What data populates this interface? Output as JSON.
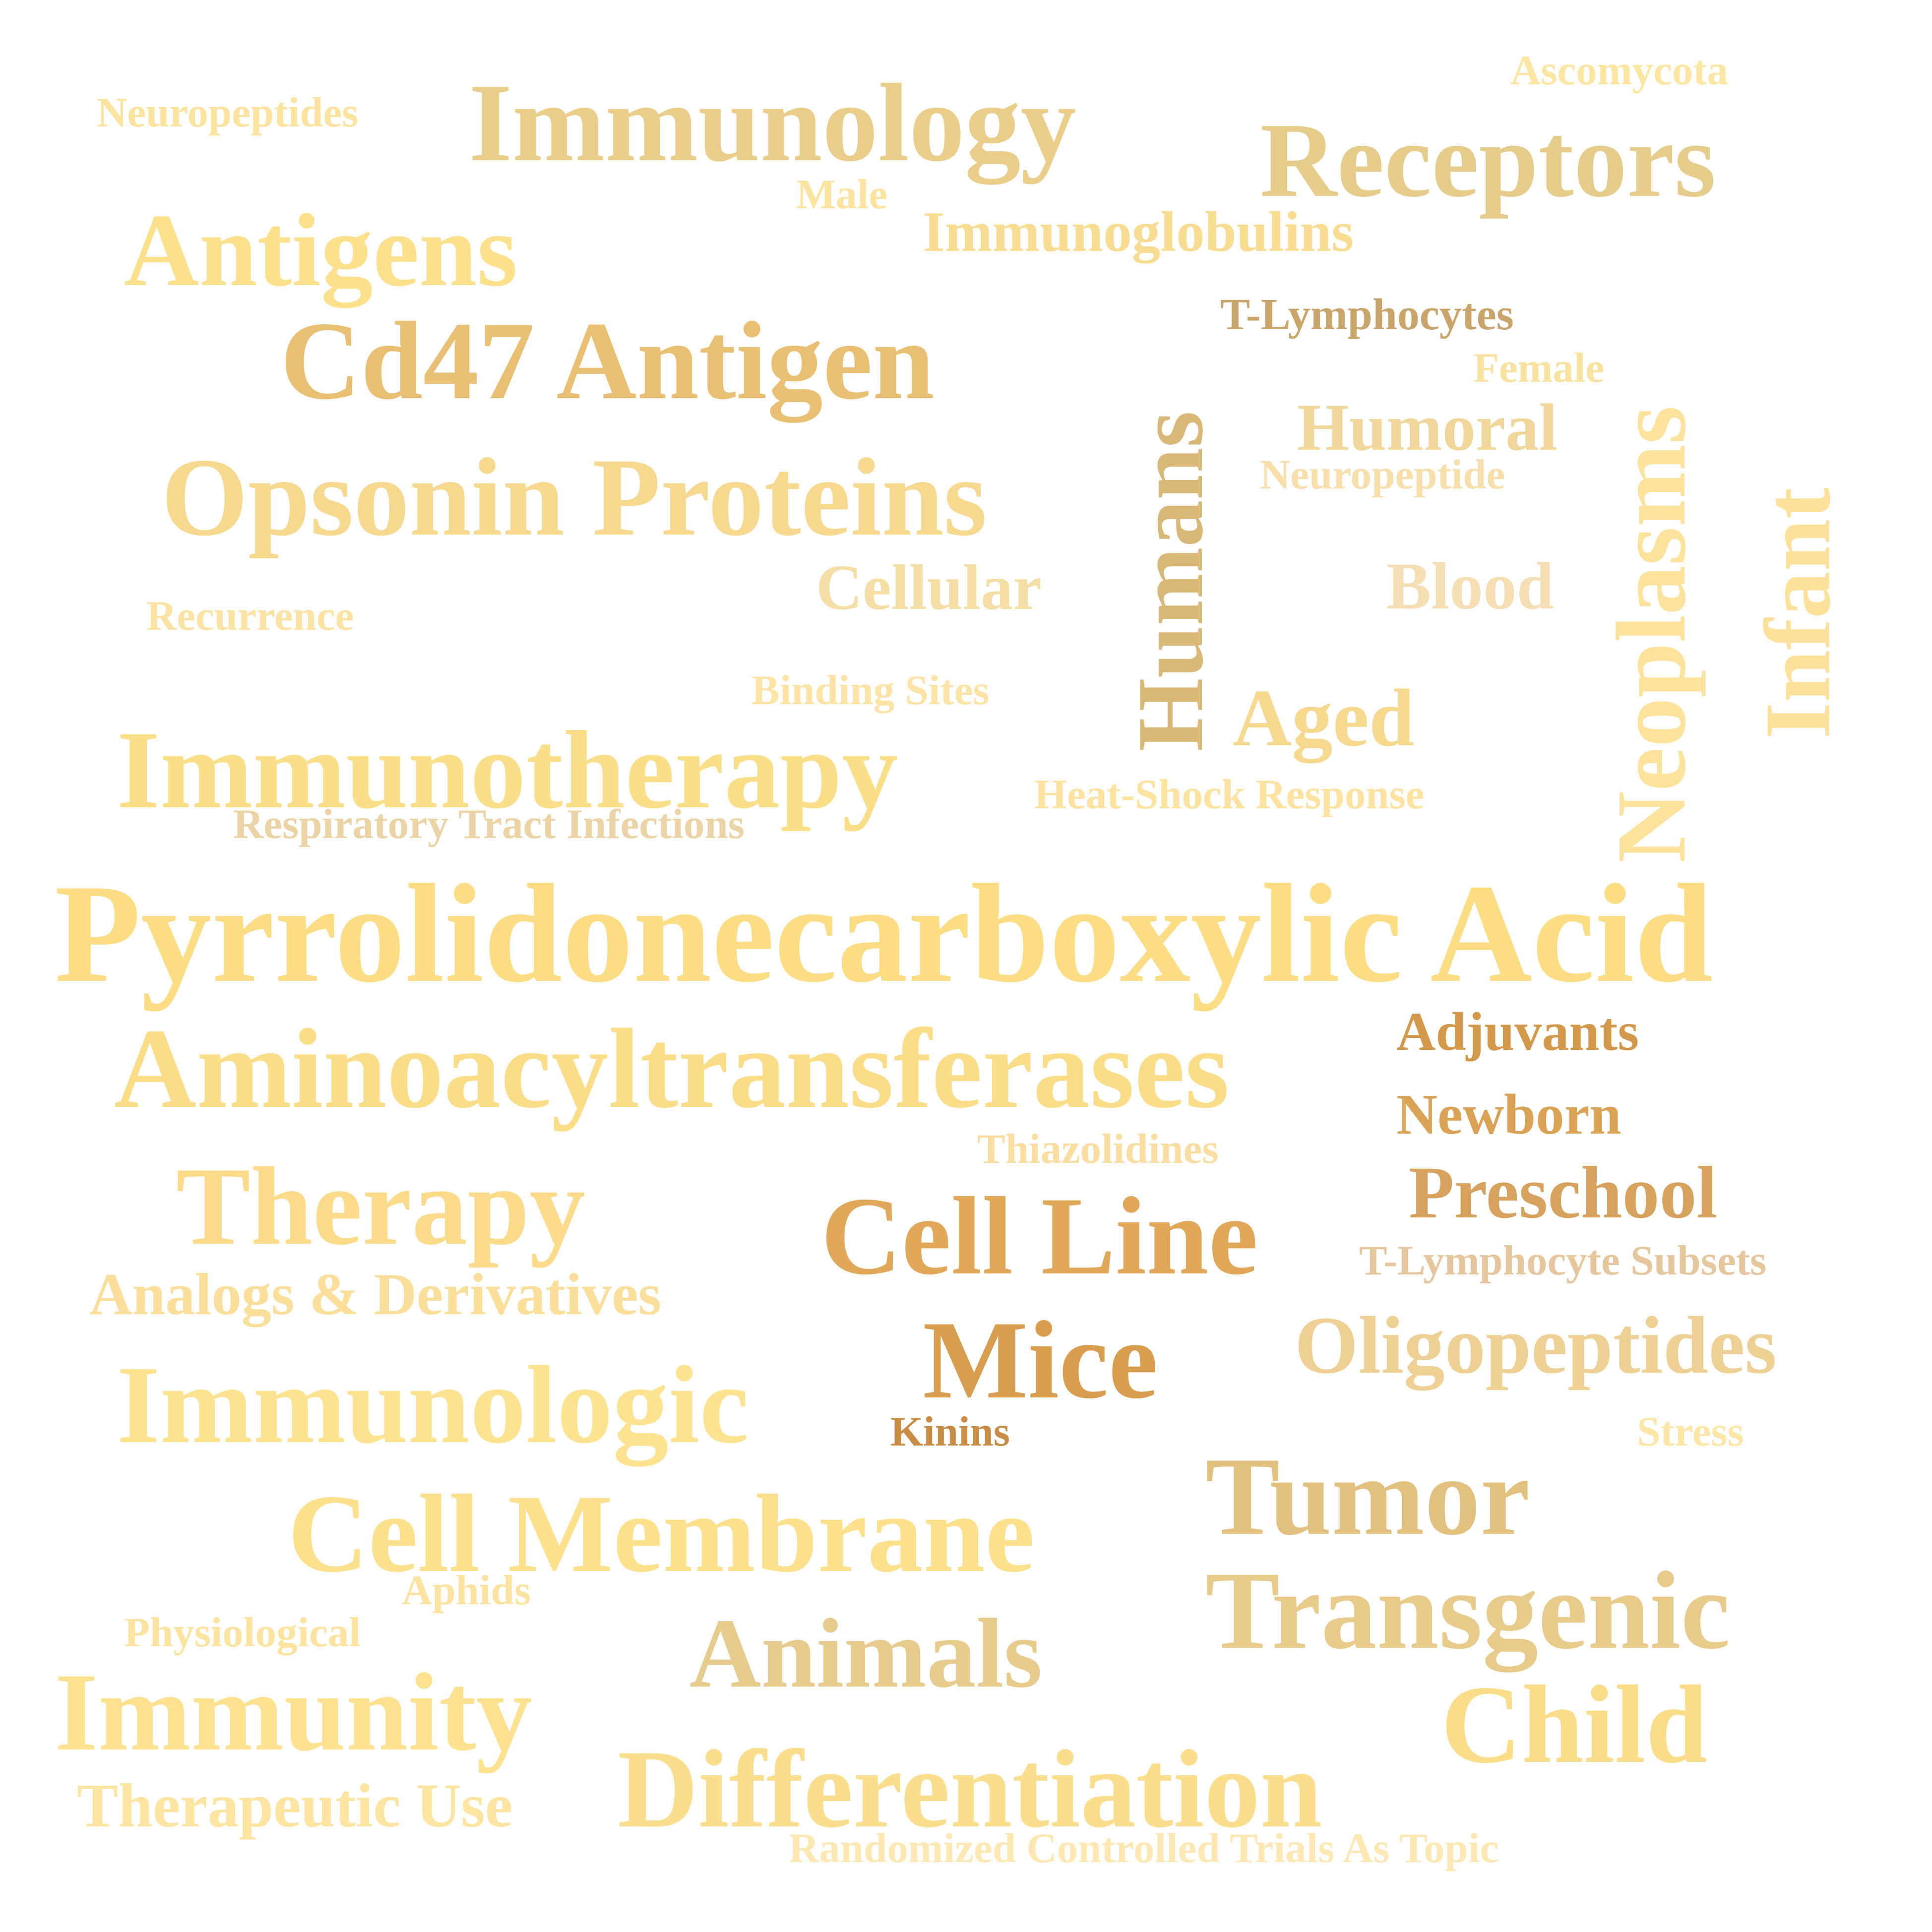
{
  "words": [
    {
      "text": "Pyrrolidonecarboxylic Acid",
      "color": "#fcdd84"
    },
    {
      "text": "Aminoacyltransferases",
      "color": "#fbdc87"
    },
    {
      "text": "Immunotherapy",
      "color": "#fade88"
    },
    {
      "text": "Opsonin Proteins",
      "color": "#f6d98f"
    },
    {
      "text": "Cd47 Antigen",
      "color": "#e8bf73"
    },
    {
      "text": "Immunology",
      "color": "#ebcd8a"
    },
    {
      "text": "Antigens",
      "color": "#fde08c"
    },
    {
      "text": "Receptors",
      "color": "#e6cc8a"
    },
    {
      "text": "Immunoglobulins",
      "color": "#f7dc91"
    },
    {
      "text": "Neuropeptides",
      "color": "#fde3a0"
    },
    {
      "text": "Ascomycota",
      "color": "#fde5a2"
    },
    {
      "text": "Male",
      "color": "#fde3a0"
    },
    {
      "text": "Humans",
      "color": "#d9b776"
    },
    {
      "text": "T-Lymphocytes",
      "color": "#caa56b"
    },
    {
      "text": "Female",
      "color": "#f9e1a0"
    },
    {
      "text": "Neoplasms",
      "color": "#fde29c"
    },
    {
      "text": "Infant",
      "color": "#fde19a"
    },
    {
      "text": "Humoral",
      "color": "#f0d69b"
    },
    {
      "text": "Neuropeptide",
      "color": "#f7deaa"
    },
    {
      "text": "Blood",
      "color": "#f6deb4"
    },
    {
      "text": "Cellular",
      "color": "#f5dea6"
    },
    {
      "text": "Recurrence",
      "color": "#fde3a3"
    },
    {
      "text": "Binding Sites",
      "color": "#fde4a6"
    },
    {
      "text": "Aged",
      "color": "#f6d98e"
    },
    {
      "text": "Heat-Shock Response",
      "color": "#fde2a0"
    },
    {
      "text": "Respiratory Tract Infections",
      "color": "#ebd3a6"
    },
    {
      "text": "Adjuvants",
      "color": "#d4984a"
    },
    {
      "text": "Newborn",
      "color": "#daa254"
    },
    {
      "text": "Thiazolidines",
      "color": "#fbdda1"
    },
    {
      "text": "Preschool",
      "color": "#d6a25e"
    },
    {
      "text": "Therapy",
      "color": "#fbdb8a"
    },
    {
      "text": "Cell Line",
      "color": "#e1a85a"
    },
    {
      "text": "T-Lymphocyte Subsets",
      "color": "#e6c69c"
    },
    {
      "text": "Analogs & Derivatives",
      "color": "#fbde9a"
    },
    {
      "text": "Mice",
      "color": "#d89d4e"
    },
    {
      "text": "Oligopeptides",
      "color": "#eed094"
    },
    {
      "text": "Immunologic",
      "color": "#fde38f"
    },
    {
      "text": "Kinins",
      "color": "#c98c45"
    },
    {
      "text": "Stress",
      "color": "#fde6a8"
    },
    {
      "text": "Tumor",
      "color": "#e2c07d"
    },
    {
      "text": "Cell Membrane",
      "color": "#fce08c"
    },
    {
      "text": "Aphids",
      "color": "#fde2a0"
    },
    {
      "text": "Transgenic",
      "color": "#e8cb8a"
    },
    {
      "text": "Physiological",
      "color": "#fde3a0"
    },
    {
      "text": "Animals",
      "color": "#e6cb8c"
    },
    {
      "text": "Immunity",
      "color": "#fde18e"
    },
    {
      "text": "Child",
      "color": "#fbdc88"
    },
    {
      "text": "Differentiation",
      "color": "#fbde8d"
    },
    {
      "text": "Therapeutic Use",
      "color": "#fde4a0"
    },
    {
      "text": "Randomized Controlled Trials As Topic",
      "color": "#fde8b4"
    }
  ]
}
